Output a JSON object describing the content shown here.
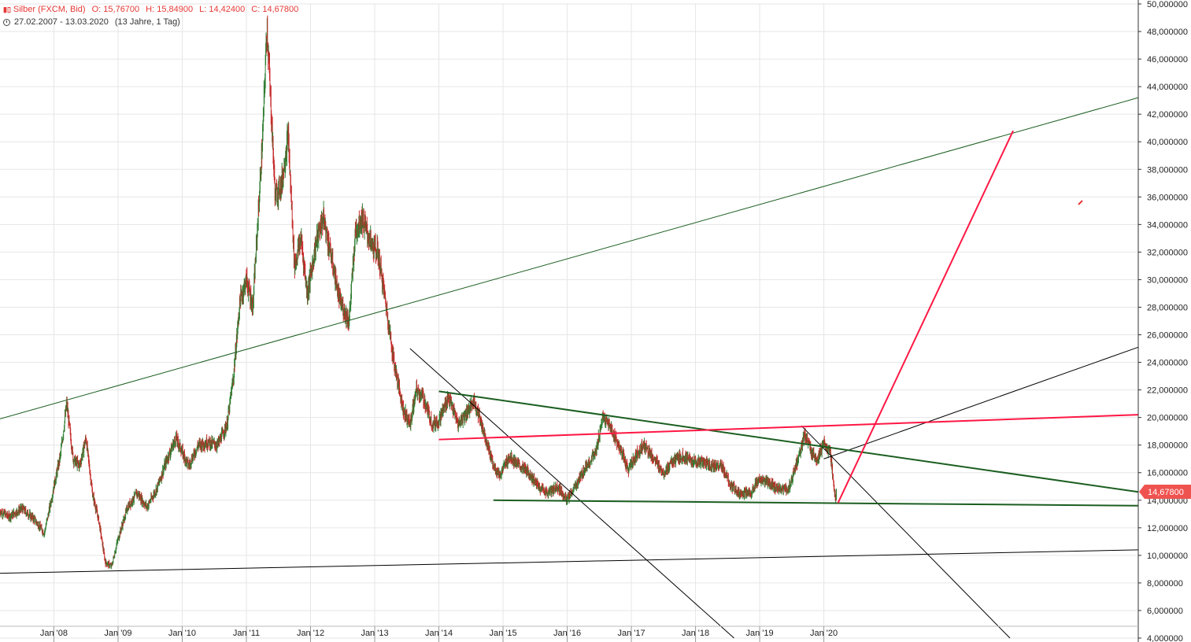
{
  "header": {
    "symbol": "Silber (FXCM, Bid)",
    "open_label": "O:",
    "open": "15,76700",
    "high_label": "H:",
    "high": "15,84900",
    "low_label": "L:",
    "low": "14,42400",
    "close_label": "C:",
    "close": "14,67800",
    "date_range": "27.02.2007 - 13.03.2020",
    "period": "(13 Jahre, 1 Tag)",
    "symbol_icon": "chart-bars-icon",
    "range_icon": "clock-icon"
  },
  "colors": {
    "up": "#2e7d32",
    "down": "#c62828",
    "trend_green": "#1b5e20",
    "trend_red": "#ff1744",
    "trend_black": "#000000",
    "price_badge": "#ef5350",
    "header_red": "#e53935"
  },
  "current_price_label": "14,67800",
  "chart_data": {
    "type": "candlestick",
    "x_ticks": [
      "Jan '08",
      "Jan '09",
      "Jan '10",
      "Jan '11",
      "Jan '12",
      "Jan '13",
      "Jan '14",
      "Jan '15",
      "Jan '16",
      "Jan '17",
      "Jan '18",
      "Jan '19",
      "Jan '20"
    ],
    "y_ticks": [
      "4,000000",
      "6,000000",
      "8,000000",
      "10,000000",
      "12,000000",
      "14,000000",
      "16,000000",
      "18,000000",
      "20,000000",
      "22,000000",
      "24,000000",
      "26,000000",
      "28,000000",
      "30,000000",
      "32,000000",
      "34,000000",
      "36,000000",
      "38,000000",
      "40,000000",
      "42,000000",
      "44,000000",
      "46,000000",
      "48,000000",
      "50,000000"
    ],
    "ylim": [
      4,
      50
    ],
    "xlim": [
      2007.16,
      2024.9
    ],
    "grid": true,
    "price_path": [
      [
        2007.16,
        13.2
      ],
      [
        2007.3,
        12.8
      ],
      [
        2007.5,
        13.4
      ],
      [
        2007.7,
        12.6
      ],
      [
        2007.85,
        11.6
      ],
      [
        2007.95,
        13.8
      ],
      [
        2008.0,
        15.0
      ],
      [
        2008.1,
        17.2
      ],
      [
        2008.2,
        21.0
      ],
      [
        2008.3,
        17.0
      ],
      [
        2008.4,
        16.5
      ],
      [
        2008.5,
        18.5
      ],
      [
        2008.6,
        14.5
      ],
      [
        2008.7,
        12.5
      ],
      [
        2008.8,
        9.5
      ],
      [
        2008.9,
        9.2
      ],
      [
        2009.0,
        11.2
      ],
      [
        2009.15,
        13.5
      ],
      [
        2009.3,
        14.5
      ],
      [
        2009.45,
        13.5
      ],
      [
        2009.6,
        14.8
      ],
      [
        2009.75,
        16.8
      ],
      [
        2009.9,
        18.5
      ],
      [
        2010.0,
        17.5
      ],
      [
        2010.1,
        16.5
      ],
      [
        2010.25,
        18.0
      ],
      [
        2010.4,
        18.2
      ],
      [
        2010.55,
        18.0
      ],
      [
        2010.7,
        19.5
      ],
      [
        2010.8,
        23.0
      ],
      [
        2010.9,
        28.5
      ],
      [
        2011.0,
        30.0
      ],
      [
        2011.1,
        28.0
      ],
      [
        2011.25,
        40.0
      ],
      [
        2011.32,
        48.5
      ],
      [
        2011.45,
        36.0
      ],
      [
        2011.55,
        37.0
      ],
      [
        2011.65,
        40.5
      ],
      [
        2011.75,
        31.0
      ],
      [
        2011.85,
        33.0
      ],
      [
        2011.95,
        29.0
      ],
      [
        2012.1,
        33.0
      ],
      [
        2012.2,
        34.5
      ],
      [
        2012.35,
        31.0
      ],
      [
        2012.45,
        28.5
      ],
      [
        2012.6,
        27.0
      ],
      [
        2012.7,
        33.5
      ],
      [
        2012.8,
        34.5
      ],
      [
        2012.95,
        32.5
      ],
      [
        2013.05,
        32.0
      ],
      [
        2013.15,
        29.0
      ],
      [
        2013.3,
        24.0
      ],
      [
        2013.45,
        20.5
      ],
      [
        2013.55,
        19.5
      ],
      [
        2013.65,
        22.0
      ],
      [
        2013.75,
        21.5
      ],
      [
        2013.9,
        19.5
      ],
      [
        2014.0,
        19.8
      ],
      [
        2014.15,
        21.5
      ],
      [
        2014.3,
        19.5
      ],
      [
        2014.45,
        20.5
      ],
      [
        2014.55,
        21.2
      ],
      [
        2014.7,
        19.0
      ],
      [
        2014.85,
        16.5
      ],
      [
        2014.95,
        15.8
      ],
      [
        2015.1,
        17.2
      ],
      [
        2015.25,
        16.5
      ],
      [
        2015.4,
        16.0
      ],
      [
        2015.55,
        15.0
      ],
      [
        2015.7,
        14.5
      ],
      [
        2015.85,
        15.0
      ],
      [
        2016.0,
        14.0
      ],
      [
        2016.15,
        15.2
      ],
      [
        2016.3,
        16.5
      ],
      [
        2016.45,
        17.5
      ],
      [
        2016.55,
        20.0
      ],
      [
        2016.65,
        19.5
      ],
      [
        2016.8,
        18.0
      ],
      [
        2016.95,
        16.2
      ],
      [
        2017.1,
        17.5
      ],
      [
        2017.2,
        18.0
      ],
      [
        2017.35,
        17.0
      ],
      [
        2017.5,
        16.0
      ],
      [
        2017.65,
        16.8
      ],
      [
        2017.8,
        17.2
      ],
      [
        2017.95,
        16.8
      ],
      [
        2018.1,
        16.8
      ],
      [
        2018.25,
        16.5
      ],
      [
        2018.4,
        16.5
      ],
      [
        2018.55,
        15.0
      ],
      [
        2018.7,
        14.5
      ],
      [
        2018.85,
        14.5
      ],
      [
        2019.0,
        15.5
      ],
      [
        2019.15,
        15.2
      ],
      [
        2019.3,
        14.8
      ],
      [
        2019.45,
        14.8
      ],
      [
        2019.6,
        17.0
      ],
      [
        2019.7,
        18.8
      ],
      [
        2019.8,
        17.5
      ],
      [
        2019.9,
        17.0
      ],
      [
        2020.0,
        18.0
      ],
      [
        2020.1,
        17.5
      ],
      [
        2020.18,
        14.0
      ],
      [
        2020.2,
        14.7
      ]
    ],
    "trendlines": [
      {
        "color": "green_thin",
        "from": [
          2007.16,
          19.9
        ],
        "to": [
          2024.9,
          43.2
        ]
      },
      {
        "color": "black_thin",
        "from": [
          2007.16,
          8.7
        ],
        "to": [
          2024.9,
          10.4
        ]
      },
      {
        "color": "black_thin",
        "from": [
          2013.55,
          25.0
        ],
        "to": [
          2018.6,
          4.0
        ]
      },
      {
        "color": "black_thin",
        "from": [
          2019.65,
          19.4
        ],
        "to": [
          2022.9,
          4.0
        ]
      },
      {
        "color": "black_thin",
        "from": [
          2020.0,
          17.0
        ],
        "to": [
          2024.9,
          25.1
        ]
      },
      {
        "color": "green_thick",
        "from": [
          2014.0,
          21.9
        ],
        "to": [
          2024.9,
          14.6
        ]
      },
      {
        "color": "green_thick",
        "from": [
          2014.85,
          14.0
        ],
        "to": [
          2024.9,
          13.6
        ]
      },
      {
        "color": "red_thick",
        "from": [
          2014.0,
          18.4
        ],
        "to": [
          2024.9,
          20.2
        ]
      },
      {
        "color": "red_thick",
        "from": [
          2020.22,
          13.8
        ],
        "to": [
          2022.95,
          40.8
        ]
      }
    ]
  }
}
